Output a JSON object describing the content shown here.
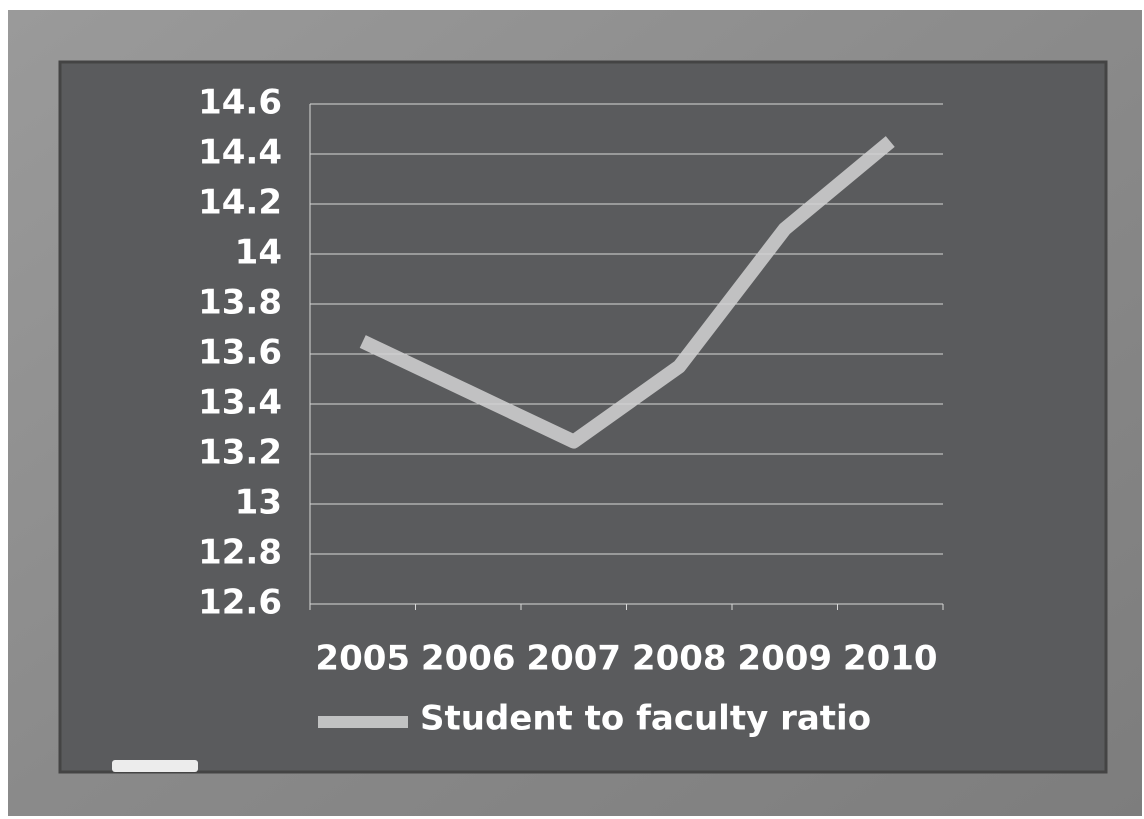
{
  "chart_data": {
    "type": "line",
    "categories": [
      "2005",
      "2006",
      "2007",
      "2008",
      "2009",
      "2010"
    ],
    "series": [
      {
        "name": "Student to faculty ratio",
        "color": "#d4d4d4",
        "values": [
          13.65,
          13.45,
          13.25,
          13.55,
          14.1,
          14.45
        ]
      }
    ],
    "ylim": [
      12.6,
      14.6
    ],
    "yticks": [
      12.6,
      12.8,
      13,
      13.2,
      13.4,
      13.6,
      13.8,
      14,
      14.2,
      14.4,
      14.6
    ],
    "grid": true,
    "legend": "bottom"
  }
}
